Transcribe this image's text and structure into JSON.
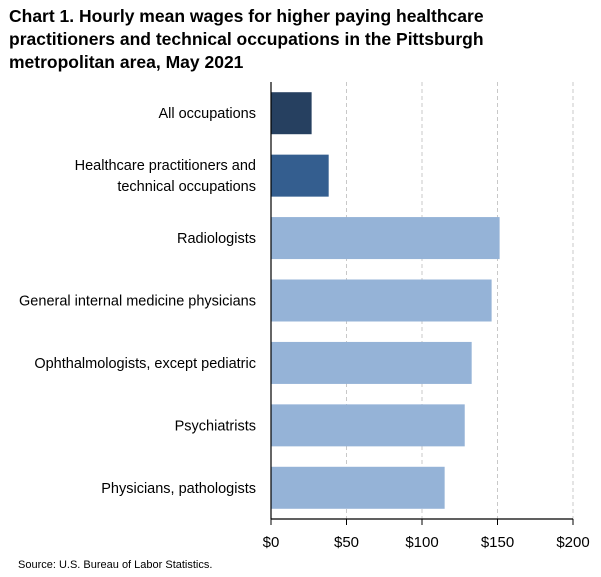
{
  "chart_data": {
    "type": "bar",
    "orientation": "horizontal",
    "title": "Chart 1. Hourly mean wages for higher paying healthcare practitioners and technical occupations in the Pittsburgh metropolitan area, May 2021",
    "categories": [
      [
        "All occupations"
      ],
      [
        "Healthcare practitioners and",
        "technical occupations"
      ],
      [
        "Radiologists"
      ],
      [
        "General internal medicine physicians"
      ],
      [
        "Ophthalmologists, except pediatric"
      ],
      [
        "Psychiatrists"
      ],
      [
        "Physicians, pathologists"
      ]
    ],
    "values": [
      26.9,
      38.2,
      151.4,
      146.1,
      132.9,
      128.3,
      115.0
    ],
    "colors": [
      "#264060",
      "#345E8F",
      "#95B3D7",
      "#95B3D7",
      "#95B3D7",
      "#95B3D7",
      "#95B3D7"
    ],
    "xlim": [
      0,
      200
    ],
    "xticks": [
      0,
      50,
      100,
      150,
      200
    ],
    "xtick_labels": [
      "$0",
      "$50",
      "$100",
      "$150",
      "$200"
    ],
    "grid": "vertical dashed",
    "xlabel": "",
    "ylabel": "",
    "source": "Source: U.S. Bureau of Labor Statistics."
  }
}
